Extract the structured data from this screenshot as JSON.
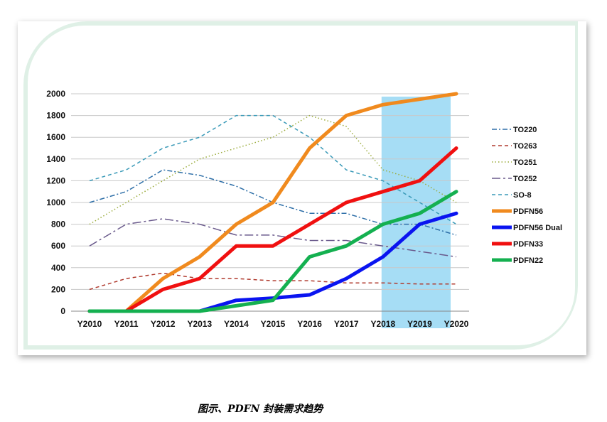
{
  "chart_data": {
    "type": "line",
    "x": [
      "Y2010",
      "Y2011",
      "Y2012",
      "Y2013",
      "Y2014",
      "Y2015",
      "Y2016",
      "Y2017",
      "Y2018",
      "Y2019",
      "Y2020"
    ],
    "ylim": [
      0,
      2000
    ],
    "yticks": [
      "0",
      "200",
      "400",
      "600",
      "800",
      "1000",
      "1200",
      "1400",
      "1600",
      "1800",
      "2000"
    ],
    "grid": true,
    "legend_position": "right",
    "highlight": {
      "from": "Y2018",
      "to": "Y2020",
      "color": "#a6ddf5"
    },
    "series": [
      {
        "name": "TO220",
        "color": "#2e6fa8",
        "style": "dashdot",
        "width": 1.5,
        "values": [
          1000,
          1100,
          1300,
          1250,
          1150,
          1000,
          900,
          900,
          800,
          800,
          700
        ]
      },
      {
        "name": "TO263",
        "color": "#b03a2e",
        "style": "dashed",
        "width": 1.5,
        "values": [
          200,
          300,
          350,
          300,
          300,
          280,
          280,
          260,
          260,
          250,
          250
        ]
      },
      {
        "name": "TO251",
        "color": "#9aab3a",
        "style": "dotted",
        "width": 1.5,
        "values": [
          800,
          1000,
          1200,
          1400,
          1500,
          1600,
          1800,
          1700,
          1300,
          1200,
          1000
        ]
      },
      {
        "name": "TO252",
        "color": "#6a5a8c",
        "style": "longdashdot",
        "width": 1.5,
        "values": [
          600,
          800,
          850,
          800,
          700,
          700,
          650,
          650,
          600,
          550,
          500
        ]
      },
      {
        "name": "SO-8",
        "color": "#3a9ab8",
        "style": "dashed",
        "width": 1.5,
        "values": [
          1200,
          1300,
          1500,
          1600,
          1800,
          1800,
          1600,
          1300,
          1200,
          1000,
          800
        ]
      },
      {
        "name": "PDFN56",
        "color": "#f08a1e",
        "style": "solid",
        "width": 5,
        "values": [
          0,
          0,
          300,
          500,
          800,
          1000,
          1500,
          1800,
          1900,
          1950,
          2000
        ]
      },
      {
        "name": "PDFN56 Dual",
        "color": "#0a14f0",
        "style": "solid",
        "width": 5,
        "values": [
          0,
          0,
          0,
          0,
          100,
          120,
          150,
          300,
          500,
          800,
          900
        ]
      },
      {
        "name": "PDFN33",
        "color": "#f01010",
        "style": "solid",
        "width": 5,
        "values": [
          0,
          0,
          200,
          300,
          600,
          600,
          800,
          1000,
          1100,
          1200,
          1500
        ]
      },
      {
        "name": "PDFN22",
        "color": "#14b050",
        "style": "solid",
        "width": 5,
        "values": [
          0,
          0,
          0,
          0,
          50,
          100,
          500,
          600,
          800,
          900,
          1100
        ]
      }
    ]
  },
  "caption": "图示、PDFN 封装需求趋势"
}
